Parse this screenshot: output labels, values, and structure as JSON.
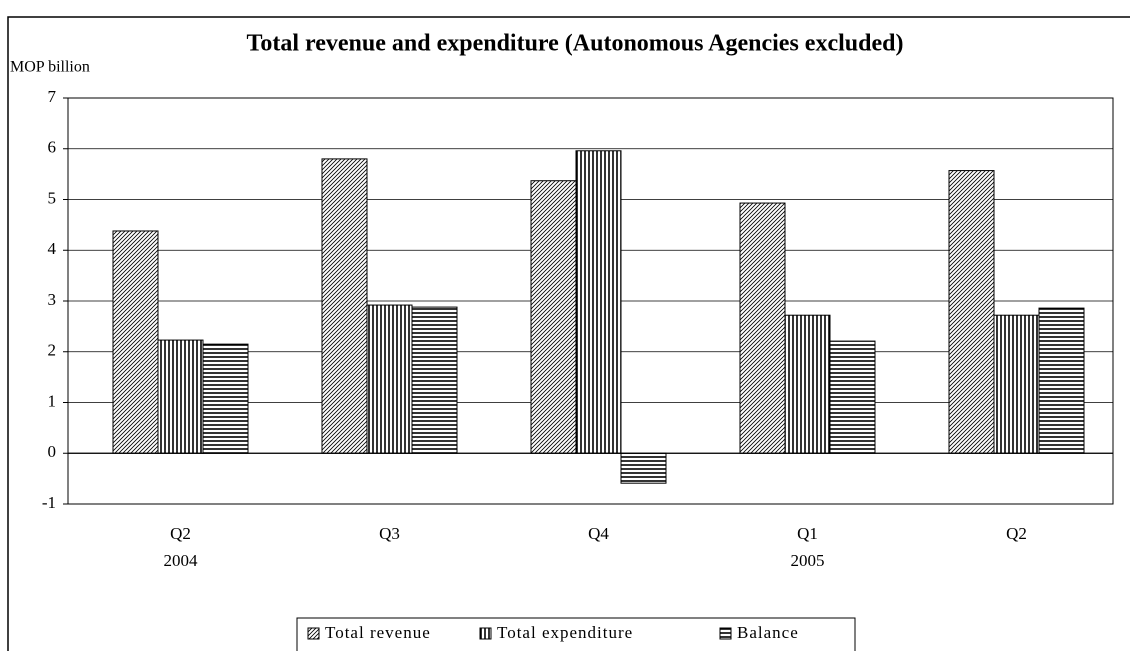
{
  "chart_data": {
    "type": "bar",
    "title": "Total revenue and expenditure (Autonomous Agencies excluded)",
    "y_label": "MOP billion",
    "categories": [
      "Q2",
      "Q3",
      "Q4",
      "Q1",
      "Q2"
    ],
    "years": [
      "2004",
      null,
      null,
      "2005",
      null
    ],
    "series": [
      {
        "name": "Total revenue",
        "pattern": "diagonal",
        "color": "#000000",
        "values": [
          4.38,
          5.8,
          5.37,
          4.93,
          5.57
        ]
      },
      {
        "name": "Total expenditure",
        "pattern": "vertical",
        "color": "#000000",
        "values": [
          2.23,
          2.92,
          5.96,
          2.72,
          2.72
        ]
      },
      {
        "name": "Balance",
        "pattern": "horizontal",
        "color": "#000000",
        "values": [
          2.15,
          2.88,
          -0.59,
          2.21,
          2.86
        ]
      }
    ],
    "ylim": [
      -1,
      7
    ],
    "yticks": [
      -1,
      0,
      1,
      2,
      3,
      4,
      5,
      6,
      7
    ],
    "grid": true,
    "legend": "bottom"
  }
}
